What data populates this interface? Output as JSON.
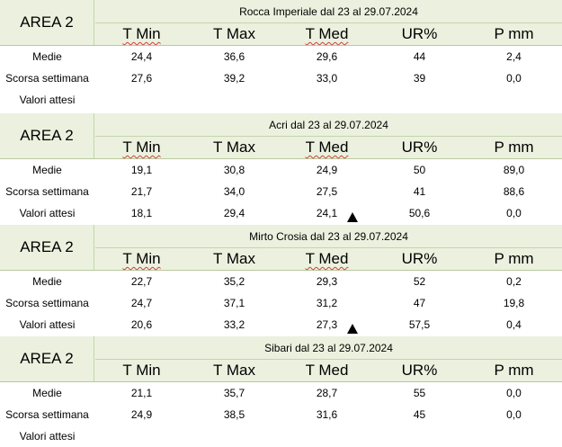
{
  "columns": [
    "T Min",
    "T Max",
    "T Med",
    "UR%",
    "P mm"
  ],
  "blocks": [
    {
      "area": "AREA 2",
      "location": "Rocca Imperiale  dal 23 al 29.07.2024",
      "rows": [
        {
          "label": "Medie",
          "values": [
            "24,4",
            "36,6",
            "29,6",
            "44",
            "2,4"
          ]
        },
        {
          "label": "Scorsa settimana",
          "values": [
            "27,6",
            "39,2",
            "33,0",
            "39",
            "0,0"
          ]
        },
        {
          "label": "Valori attesi",
          "values": [
            "",
            "",
            "",
            "",
            ""
          ]
        }
      ]
    },
    {
      "area": "AREA 2",
      "location": "Acri dal 23 al 29.07.2024",
      "rows": [
        {
          "label": "Medie",
          "values": [
            "19,1",
            "30,8",
            "24,9",
            "50",
            "89,0"
          ]
        },
        {
          "label": "Scorsa settimana",
          "values": [
            "21,7",
            "34,0",
            "27,5",
            "41",
            "88,6"
          ]
        },
        {
          "label": "Valori attesi",
          "values": [
            "18,1",
            "29,4",
            "24,1",
            "50,6",
            "0,0"
          ]
        }
      ]
    },
    {
      "area": "AREA 2",
      "location": "Mirto Crosia dal 23 al 29.07.2024",
      "rows": [
        {
          "label": "Medie",
          "values": [
            "22,7",
            "35,2",
            "29,3",
            "52",
            "0,2"
          ]
        },
        {
          "label": "Scorsa settimana",
          "values": [
            "24,7",
            "37,1",
            "31,2",
            "47",
            "19,8"
          ]
        },
        {
          "label": "Valori attesi",
          "values": [
            "20,6",
            "33,2",
            "27,3",
            "57,5",
            "0,4"
          ]
        }
      ]
    },
    {
      "area": "AREA 2",
      "location": "Sibari dal 23 al 29.07.2024",
      "rows": [
        {
          "label": "Medie",
          "values": [
            "21,1",
            "35,7",
            "28,7",
            "55",
            "0,0"
          ]
        },
        {
          "label": "Scorsa settimana",
          "values": [
            "24,9",
            "38,5",
            "31,6",
            "45",
            "0,0"
          ]
        },
        {
          "label": "Valori attesi",
          "values": [
            "",
            "",
            "",
            "",
            ""
          ]
        }
      ]
    }
  ],
  "icons": {
    "trend": "up-triangle-icon"
  }
}
